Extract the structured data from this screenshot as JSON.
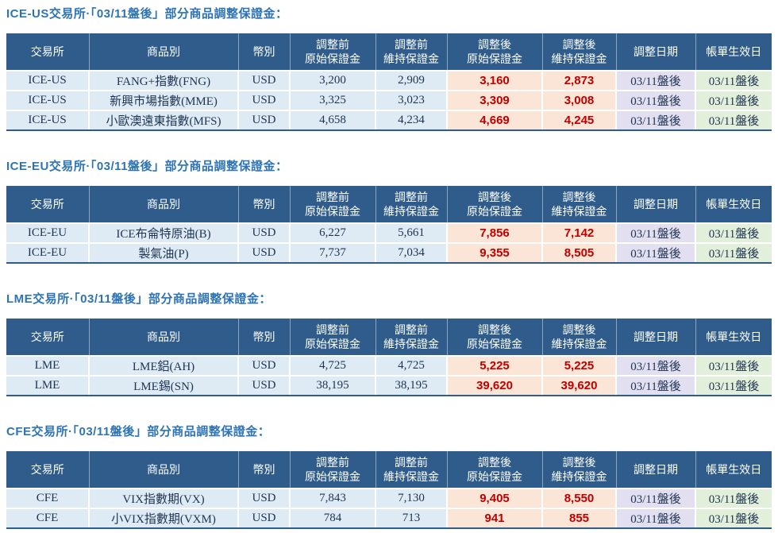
{
  "colors": {
    "title_blue": "#2E74B5",
    "header_bg": "#2F5C8A",
    "header_text": "#FFFFFF",
    "pre_adjust_bg": "#DEEBF5",
    "post_adjust_bg": "#FBE5D6",
    "post_adjust_text": "#C00000",
    "adjust_date_bg": "#E2DFF1",
    "effective_date_bg": "#E2EFDA",
    "body_text": "#1F3352"
  },
  "headers": [
    "交易所",
    "商品別",
    "幣別",
    "調整前\n原始保證金",
    "調整前\n維持保證金",
    "調整後\n原始保證金",
    "調整後\n維持保證金",
    "調整日期",
    "帳單生效日"
  ],
  "sections": [
    {
      "title": "ICE-US交易所·「03/11盤後」部分商品調整保證金：",
      "rows": [
        [
          "ICE-US",
          "FANG+指數(FNG)",
          "USD",
          "3,200",
          "2,909",
          "3,160",
          "2,873",
          "03/11盤後",
          "03/11盤後"
        ],
        [
          "ICE-US",
          "新興市場指數(MME)",
          "USD",
          "3,325",
          "3,023",
          "3,309",
          "3,008",
          "03/11盤後",
          "03/11盤後"
        ],
        [
          "ICE-US",
          "小歐澳遠東指數(MFS)",
          "USD",
          "4,658",
          "4,234",
          "4,669",
          "4,245",
          "03/11盤後",
          "03/11盤後"
        ]
      ]
    },
    {
      "title": "ICE-EU交易所·「03/11盤後」部分商品調整保證金：",
      "rows": [
        [
          "ICE-EU",
          "ICE布侖特原油(B)",
          "USD",
          "6,227",
          "5,661",
          "7,856",
          "7,142",
          "03/11盤後",
          "03/11盤後"
        ],
        [
          "ICE-EU",
          "製氣油(P)",
          "USD",
          "7,737",
          "7,034",
          "9,355",
          "8,505",
          "03/11盤後",
          "03/11盤後"
        ]
      ]
    },
    {
      "title": "LME交易所·「03/11盤後」部分商品調整保證金：",
      "rows": [
        [
          "LME",
          "LME鋁(AH)",
          "USD",
          "4,725",
          "4,725",
          "5,225",
          "5,225",
          "03/11盤後",
          "03/11盤後"
        ],
        [
          "LME",
          "LME錫(SN)",
          "USD",
          "38,195",
          "38,195",
          "39,620",
          "39,620",
          "03/11盤後",
          "03/11盤後"
        ]
      ]
    },
    {
      "title": "CFE交易所·「03/11盤後」部分商品調整保證金：",
      "rows": [
        [
          "CFE",
          "VIX指數期(VX)",
          "USD",
          "7,843",
          "7,130",
          "9,405",
          "8,550",
          "03/11盤後",
          "03/11盤後"
        ],
        [
          "CFE",
          "小VIX指數期(VXM)",
          "USD",
          "784",
          "713",
          "941",
          "855",
          "03/11盤後",
          "03/11盤後"
        ]
      ]
    }
  ]
}
